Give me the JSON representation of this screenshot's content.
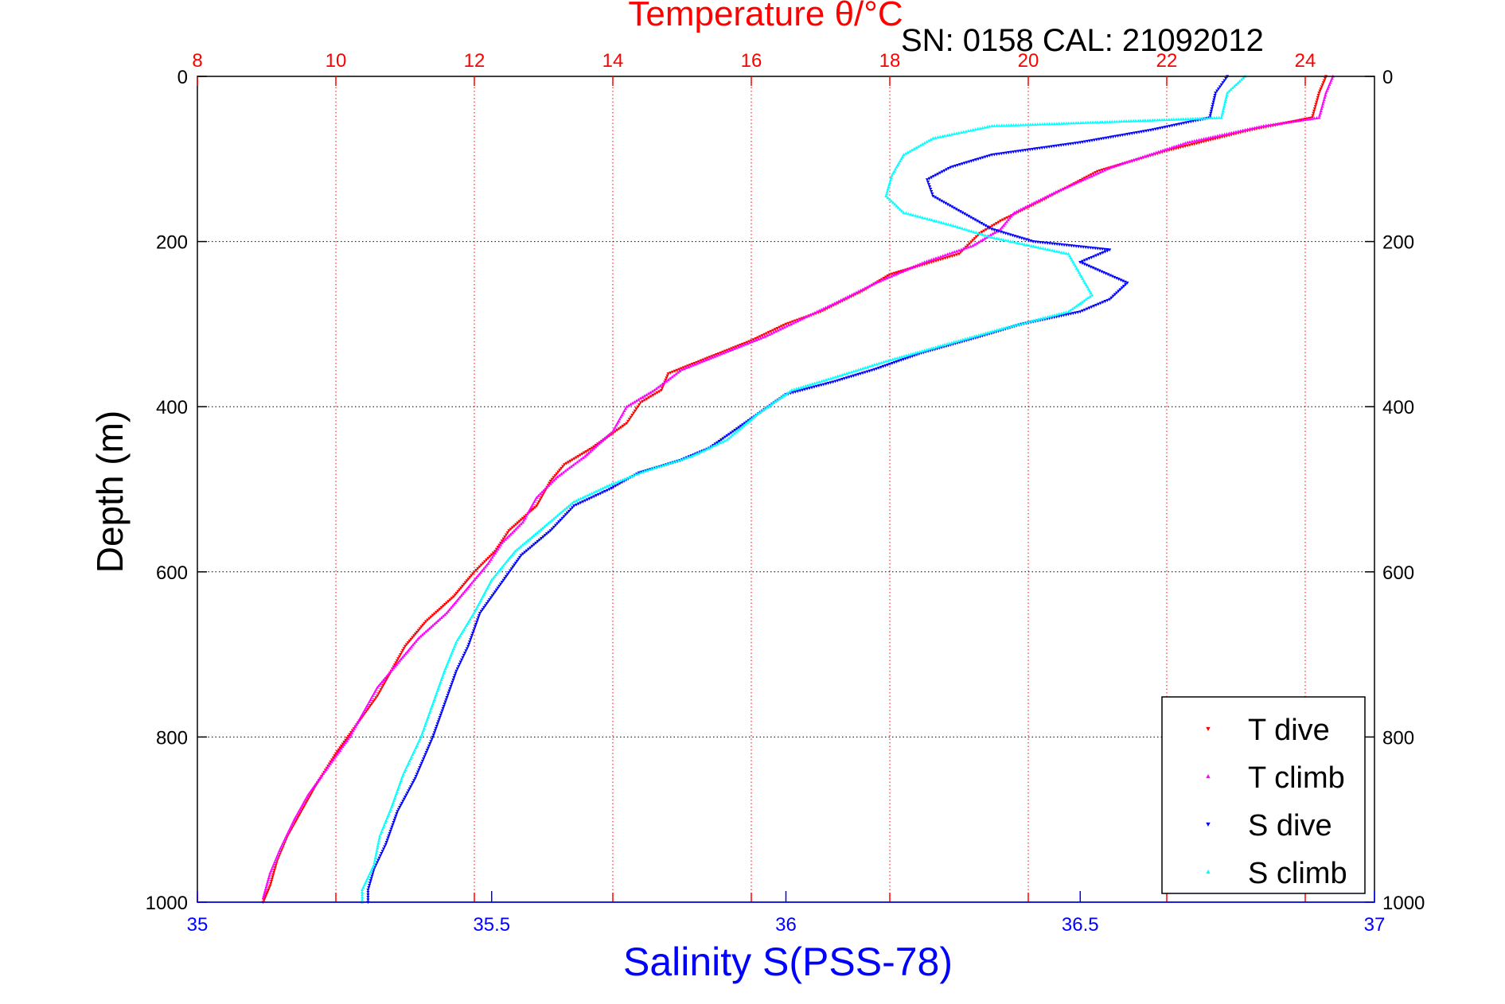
{
  "chart_data": {
    "type": "scatter",
    "top_axis": {
      "label": "Temperature θ/°C",
      "range": [
        8,
        25
      ],
      "ticks": [
        8,
        10,
        12,
        14,
        16,
        18,
        20,
        22,
        24
      ],
      "color": "#ff0000",
      "grid": true
    },
    "bottom_axis": {
      "label": "Salinity S(PSS-78)",
      "range": [
        35,
        37
      ],
      "ticks": [
        35,
        35.5,
        36,
        36.5,
        37
      ],
      "color": "#0000ff"
    },
    "y_axis": {
      "label": "Depth (m)",
      "range": [
        0,
        1000
      ],
      "reversed": true,
      "ticks": [
        0,
        200,
        400,
        600,
        800,
        1000
      ],
      "grid": true
    },
    "annotation": "SN: 0158  CAL: 21092012",
    "legend": {
      "placement": "bottom-right",
      "entries": [
        "T dive",
        "T climb",
        "S dive",
        "S climb"
      ]
    },
    "series": [
      {
        "name": "T dive",
        "axis": "top",
        "color": "#ff0000",
        "marker": "triangle-down",
        "points": [
          [
            24.3,
            0
          ],
          [
            24.2,
            20
          ],
          [
            24.1,
            50
          ],
          [
            23.2,
            65
          ],
          [
            22.0,
            90
          ],
          [
            21.0,
            115
          ],
          [
            20.2,
            150
          ],
          [
            19.6,
            175
          ],
          [
            19.3,
            190
          ],
          [
            19.0,
            215
          ],
          [
            18.0,
            240
          ],
          [
            17.6,
            260
          ],
          [
            17.0,
            285
          ],
          [
            16.5,
            300
          ],
          [
            16.0,
            320
          ],
          [
            15.4,
            340
          ],
          [
            14.8,
            360
          ],
          [
            14.7,
            380
          ],
          [
            14.4,
            395
          ],
          [
            14.2,
            420
          ],
          [
            13.7,
            450
          ],
          [
            13.3,
            470
          ],
          [
            13.1,
            490
          ],
          [
            12.9,
            520
          ],
          [
            12.5,
            550
          ],
          [
            12.3,
            575
          ],
          [
            12.0,
            600
          ],
          [
            11.7,
            630
          ],
          [
            11.3,
            660
          ],
          [
            11.0,
            690
          ],
          [
            10.8,
            720
          ],
          [
            10.6,
            750
          ],
          [
            10.3,
            785
          ],
          [
            10.0,
            820
          ],
          [
            9.7,
            860
          ],
          [
            9.5,
            890
          ],
          [
            9.3,
            920
          ],
          [
            9.15,
            950
          ],
          [
            9.05,
            980
          ],
          [
            8.95,
            1000
          ]
        ]
      },
      {
        "name": "T climb",
        "axis": "top",
        "color": "#ff00ff",
        "marker": "triangle-up",
        "points": [
          [
            24.4,
            0
          ],
          [
            24.3,
            20
          ],
          [
            24.2,
            50
          ],
          [
            23.4,
            60
          ],
          [
            22.3,
            80
          ],
          [
            21.2,
            110
          ],
          [
            20.4,
            140
          ],
          [
            19.8,
            165
          ],
          [
            19.6,
            185
          ],
          [
            19.2,
            205
          ],
          [
            18.5,
            225
          ],
          [
            17.8,
            250
          ],
          [
            17.2,
            275
          ],
          [
            16.7,
            295
          ],
          [
            16.2,
            315
          ],
          [
            15.6,
            335
          ],
          [
            15.0,
            355
          ],
          [
            14.6,
            380
          ],
          [
            14.2,
            400
          ],
          [
            14.0,
            430
          ],
          [
            13.6,
            460
          ],
          [
            13.2,
            485
          ],
          [
            12.9,
            510
          ],
          [
            12.7,
            540
          ],
          [
            12.4,
            565
          ],
          [
            12.2,
            590
          ],
          [
            11.9,
            620
          ],
          [
            11.6,
            650
          ],
          [
            11.2,
            680
          ],
          [
            10.9,
            710
          ],
          [
            10.6,
            740
          ],
          [
            10.4,
            770
          ],
          [
            10.2,
            800
          ],
          [
            9.9,
            835
          ],
          [
            9.6,
            870
          ],
          [
            9.4,
            900
          ],
          [
            9.2,
            935
          ],
          [
            9.05,
            965
          ],
          [
            8.95,
            995
          ]
        ]
      },
      {
        "name": "S dive",
        "axis": "bottom",
        "color": "#0000ff",
        "marker": "triangle-down",
        "points": [
          [
            36.75,
            0
          ],
          [
            36.73,
            20
          ],
          [
            36.72,
            50
          ],
          [
            36.62,
            65
          ],
          [
            36.5,
            80
          ],
          [
            36.35,
            95
          ],
          [
            36.28,
            110
          ],
          [
            36.24,
            125
          ],
          [
            36.25,
            145
          ],
          [
            36.3,
            165
          ],
          [
            36.35,
            185
          ],
          [
            36.42,
            200
          ],
          [
            36.55,
            210
          ],
          [
            36.5,
            225
          ],
          [
            36.58,
            250
          ],
          [
            36.55,
            270
          ],
          [
            36.5,
            285
          ],
          [
            36.4,
            300
          ],
          [
            36.33,
            315
          ],
          [
            36.23,
            335
          ],
          [
            36.15,
            355
          ],
          [
            36.08,
            370
          ],
          [
            36.0,
            385
          ],
          [
            35.96,
            405
          ],
          [
            35.92,
            425
          ],
          [
            35.87,
            450
          ],
          [
            35.82,
            465
          ],
          [
            35.75,
            480
          ],
          [
            35.7,
            500
          ],
          [
            35.64,
            520
          ],
          [
            35.6,
            550
          ],
          [
            35.55,
            580
          ],
          [
            35.52,
            610
          ],
          [
            35.48,
            650
          ],
          [
            35.46,
            690
          ],
          [
            35.44,
            720
          ],
          [
            35.42,
            760
          ],
          [
            35.4,
            800
          ],
          [
            35.37,
            850
          ],
          [
            35.34,
            890
          ],
          [
            35.32,
            930
          ],
          [
            35.3,
            960
          ],
          [
            35.29,
            985
          ],
          [
            35.29,
            1000
          ]
        ]
      },
      {
        "name": "S climb",
        "axis": "bottom",
        "color": "#00ffff",
        "marker": "triangle-up",
        "points": [
          [
            36.78,
            0
          ],
          [
            36.75,
            20
          ],
          [
            36.74,
            50
          ],
          [
            36.55,
            55
          ],
          [
            36.35,
            60
          ],
          [
            36.25,
            75
          ],
          [
            36.2,
            95
          ],
          [
            36.18,
            120
          ],
          [
            36.17,
            145
          ],
          [
            36.2,
            165
          ],
          [
            36.28,
            180
          ],
          [
            36.35,
            195
          ],
          [
            36.48,
            215
          ],
          [
            36.5,
            240
          ],
          [
            36.52,
            265
          ],
          [
            36.48,
            285
          ],
          [
            36.37,
            305
          ],
          [
            36.27,
            325
          ],
          [
            36.17,
            345
          ],
          [
            36.08,
            365
          ],
          [
            36.01,
            380
          ],
          [
            35.98,
            395
          ],
          [
            35.95,
            410
          ],
          [
            35.9,
            440
          ],
          [
            35.84,
            460
          ],
          [
            35.76,
            478
          ],
          [
            35.7,
            495
          ],
          [
            35.64,
            515
          ],
          [
            35.59,
            545
          ],
          [
            35.54,
            575
          ],
          [
            35.5,
            610
          ],
          [
            35.47,
            650
          ],
          [
            35.44,
            685
          ],
          [
            35.42,
            720
          ],
          [
            35.4,
            760
          ],
          [
            35.38,
            800
          ],
          [
            35.35,
            845
          ],
          [
            35.33,
            885
          ],
          [
            35.31,
            920
          ],
          [
            35.3,
            955
          ],
          [
            35.28,
            985
          ],
          [
            35.28,
            1000
          ]
        ]
      }
    ]
  }
}
